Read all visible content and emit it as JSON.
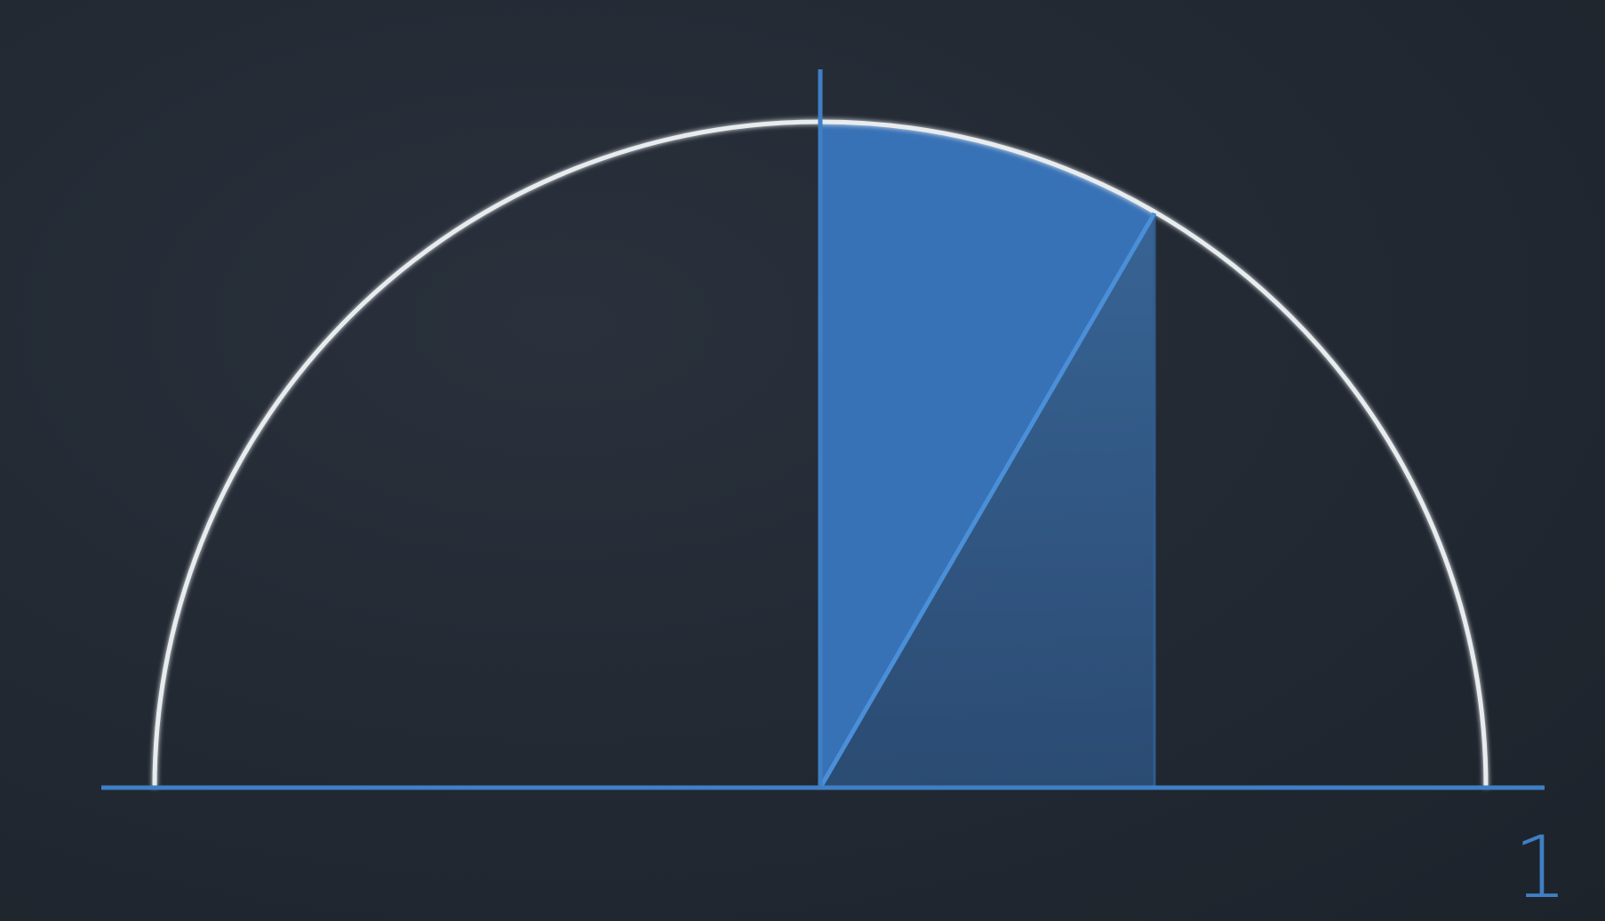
{
  "diagram": {
    "axis_label": "1",
    "colors": {
      "background": "#222832",
      "circle": "#e8ecef",
      "axis": "#3f7fc4",
      "sector_fill": "#3b7ac4",
      "strip_fill": "#2f5d8e",
      "radius_line": "#4a8fd8"
    }
  }
}
